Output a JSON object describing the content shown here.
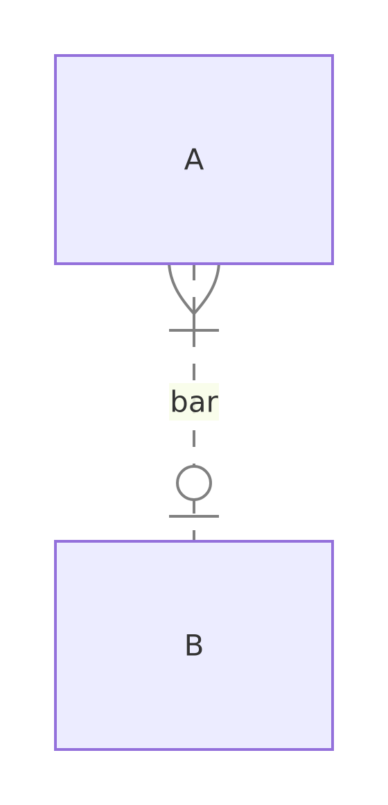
{
  "diagram": {
    "type": "er-diagram",
    "entities": [
      {
        "name": "A"
      },
      {
        "name": "B"
      }
    ],
    "relationship": {
      "label": "bar",
      "from": "A",
      "to": "B",
      "from_cardinality": "one-or-more",
      "to_cardinality": "zero-or-one",
      "line_style": "dashed"
    }
  },
  "colors": {
    "entity_fill": "#ECECFF",
    "entity_stroke": "#9370DB",
    "line": "#808080",
    "label_bg": "#F8FDE8",
    "text": "#333333"
  }
}
